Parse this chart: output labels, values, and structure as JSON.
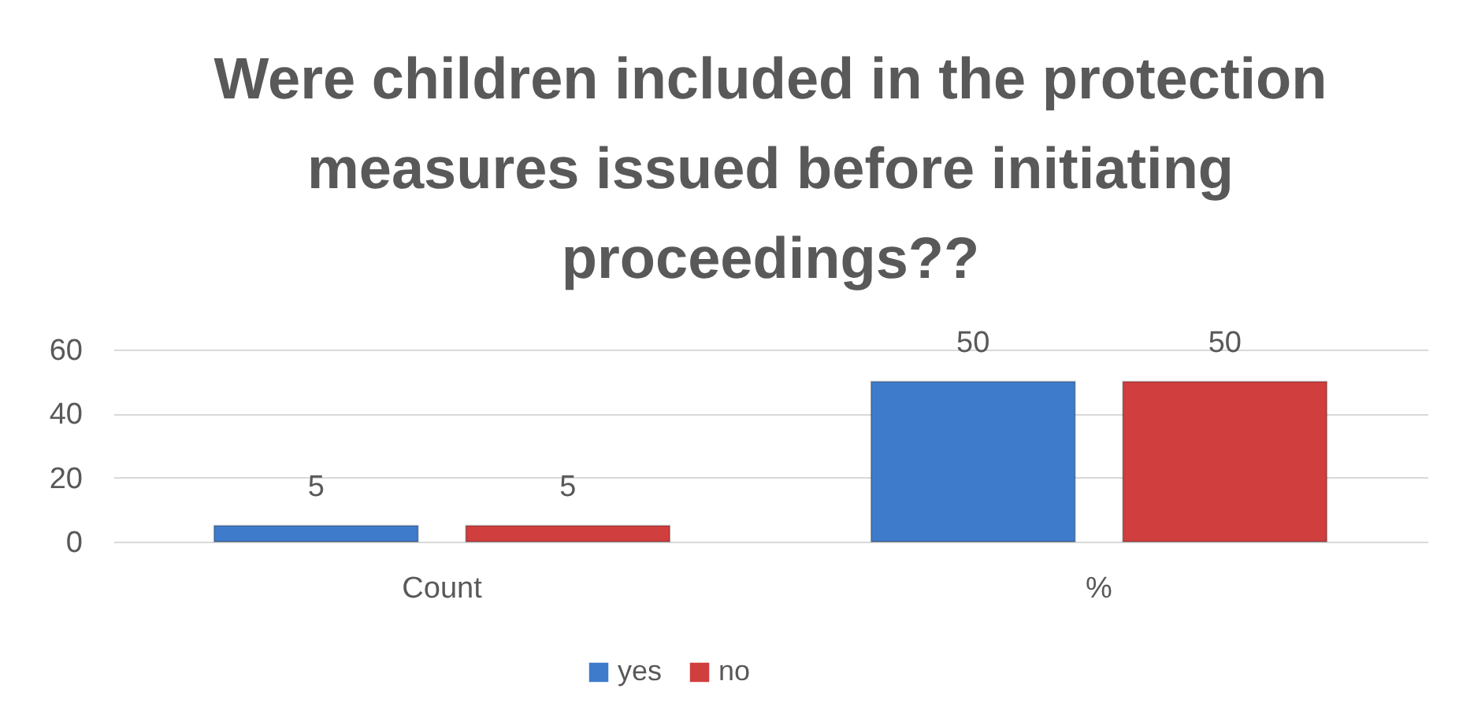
{
  "chart_data": {
    "type": "bar",
    "title": "Were children included in the protection measures issued before initiating proceedings??",
    "categories": [
      "Count",
      "%"
    ],
    "series": [
      {
        "name": "yes",
        "color": "#3e7ccb",
        "values": [
          5,
          50
        ]
      },
      {
        "name": "no",
        "color": "#d03e3e",
        "values": [
          5,
          50
        ]
      }
    ],
    "ylim": [
      0,
      60
    ],
    "yticks": [
      0,
      20,
      40,
      60
    ],
    "grid": "y",
    "legend": "bottom",
    "data_labels": true
  }
}
